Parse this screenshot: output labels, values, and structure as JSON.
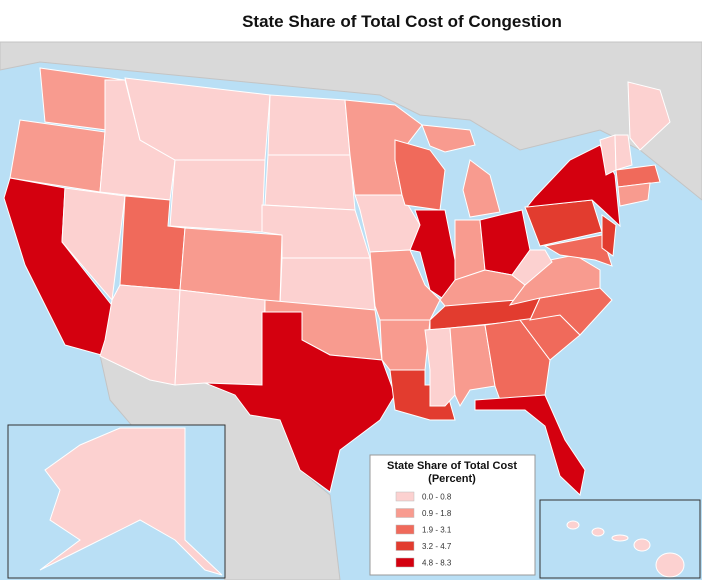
{
  "title": "State Share of Total Cost of Congestion",
  "legend": {
    "title": "State Share of Total Cost",
    "subtitle": "(Percent)",
    "classes": [
      {
        "label": "0.0 - 0.8",
        "color": "#fcd1d0"
      },
      {
        "label": "0.9 - 1.8",
        "color": "#f89b8f"
      },
      {
        "label": "1.9 - 3.1",
        "color": "#f06a5b"
      },
      {
        "label": "3.2 - 4.7",
        "color": "#e23c2f"
      },
      {
        "label": "4.8 - 8.3",
        "color": "#d4000f"
      }
    ]
  }
}
